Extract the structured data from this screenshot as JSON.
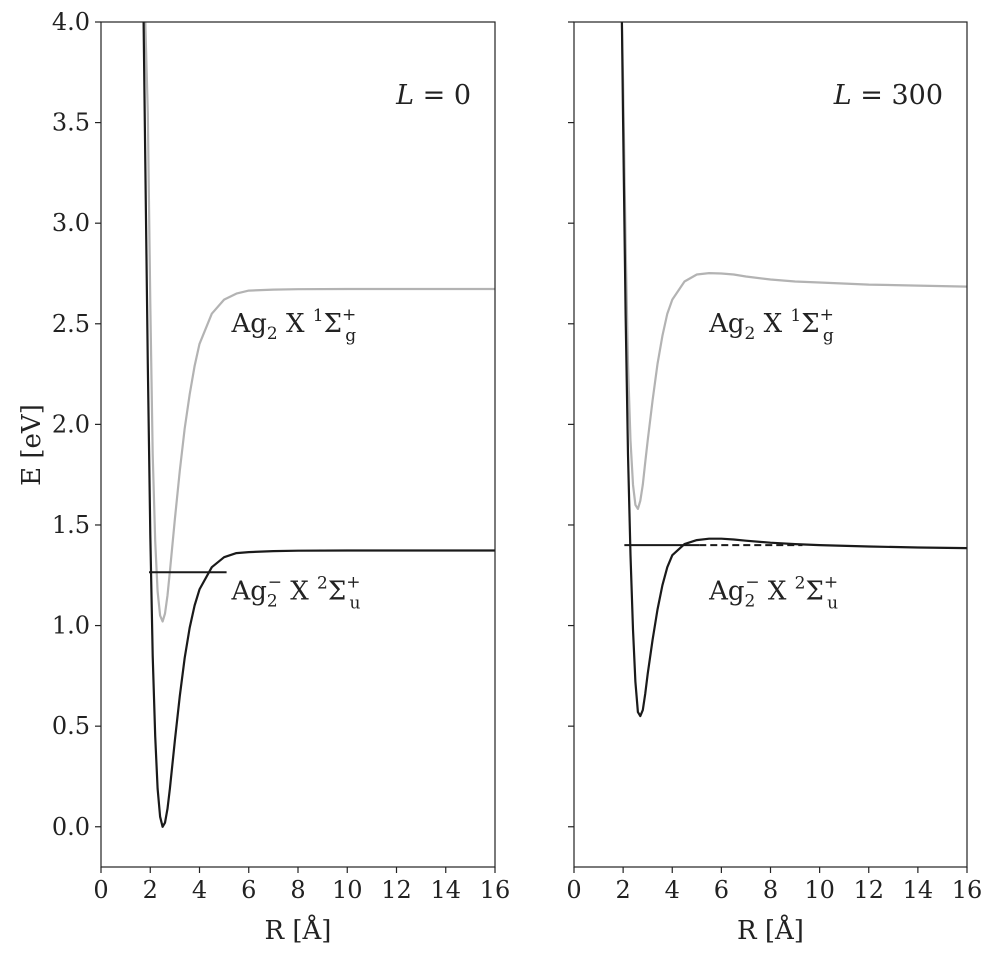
{
  "chart_data": [
    {
      "type": "line",
      "panel_label": {
        "prefix": "L",
        "value": "= 0"
      },
      "xlabel": "R [Å]",
      "ylabel": "E [eV]",
      "xlim": [
        0,
        16
      ],
      "ylim": [
        -0.2,
        4.0
      ],
      "xticks": [
        "0",
        "2",
        "4",
        "6",
        "8",
        "10",
        "12",
        "14",
        "16"
      ],
      "yticks": [
        "0.0",
        "0.5",
        "1.0",
        "1.5",
        "2.0",
        "2.5",
        "3.0",
        "3.5",
        "4.0"
      ],
      "series": [
        {
          "label_parts": [
            "Ag",
            "2",
            " X ",
            "1",
            "Σ",
            "+",
            "g"
          ],
          "color": "#b3b3b3",
          "x": [
            1.8,
            1.9,
            2.0,
            2.1,
            2.2,
            2.3,
            2.4,
            2.5,
            2.6,
            2.7,
            2.8,
            2.9,
            3.0,
            3.2,
            3.4,
            3.6,
            3.8,
            4.0,
            4.5,
            5.0,
            5.5,
            6.0,
            7.0,
            8.0,
            10.0,
            12.0,
            14.0,
            16.0
          ],
          "y": [
            4.0,
            3.55,
            2.6,
            1.85,
            1.42,
            1.17,
            1.05,
            1.02,
            1.06,
            1.15,
            1.27,
            1.4,
            1.53,
            1.77,
            1.98,
            2.15,
            2.29,
            2.4,
            2.55,
            2.62,
            2.65,
            2.665,
            2.67,
            2.672,
            2.673,
            2.673,
            2.673,
            2.673
          ]
        },
        {
          "label_parts": [
            "Ag",
            "2",
            "−",
            " X ",
            "2",
            "Σ",
            "+",
            "u"
          ],
          "color": "#1a1a1a",
          "x": [
            1.73,
            1.8,
            1.9,
            2.0,
            2.1,
            2.2,
            2.3,
            2.4,
            2.5,
            2.6,
            2.7,
            2.8,
            2.9,
            3.0,
            3.2,
            3.4,
            3.6,
            3.8,
            4.0,
            4.5,
            5.0,
            5.5,
            6.0,
            7.0,
            8.0,
            10.0,
            12.0,
            14.0,
            16.0
          ],
          "y": [
            4.0,
            3.3,
            2.3,
            1.45,
            0.85,
            0.45,
            0.19,
            0.05,
            0.0,
            0.02,
            0.09,
            0.19,
            0.31,
            0.43,
            0.65,
            0.84,
            0.99,
            1.1,
            1.18,
            1.29,
            1.34,
            1.36,
            1.365,
            1.37,
            1.372,
            1.373,
            1.373,
            1.373,
            1.373
          ]
        }
      ],
      "levels": [
        {
          "x": [
            1.95,
            5.1
          ],
          "y": 1.265,
          "style": "solid",
          "color": "#1a1a1a"
        }
      ],
      "annotations": [
        {
          "series_index": 0,
          "x": 5.3,
          "y": 2.46
        },
        {
          "series_index": 1,
          "x": 5.3,
          "y": 1.13
        }
      ]
    },
    {
      "type": "line",
      "panel_label": {
        "prefix": "L",
        "value": "= 300"
      },
      "xlabel": "R [Å]",
      "ylabel": "",
      "xlim": [
        0,
        16
      ],
      "ylim": [
        -0.2,
        4.0
      ],
      "xticks": [
        "0",
        "2",
        "4",
        "6",
        "8",
        "10",
        "12",
        "14",
        "16"
      ],
      "yticks": [],
      "series": [
        {
          "label_parts": [
            "Ag",
            "2",
            " X ",
            "1",
            "Σ",
            "+",
            "g"
          ],
          "color": "#b3b3b3",
          "x": [
            1.95,
            2.0,
            2.1,
            2.2,
            2.3,
            2.4,
            2.5,
            2.6,
            2.7,
            2.8,
            2.9,
            3.0,
            3.2,
            3.4,
            3.6,
            3.8,
            4.0,
            4.5,
            5.0,
            5.5,
            6.0,
            6.5,
            7.0,
            8.0,
            9.0,
            10.0,
            12.0,
            14.0,
            16.0
          ],
          "y": [
            4.0,
            3.7,
            2.9,
            2.3,
            1.92,
            1.7,
            1.6,
            1.58,
            1.62,
            1.7,
            1.81,
            1.92,
            2.12,
            2.3,
            2.44,
            2.55,
            2.62,
            2.71,
            2.745,
            2.752,
            2.75,
            2.745,
            2.735,
            2.72,
            2.71,
            2.705,
            2.695,
            2.69,
            2.685
          ]
        },
        {
          "label_parts": [
            "Ag",
            "2",
            "−",
            " X ",
            "2",
            "Σ",
            "+",
            "u"
          ],
          "color": "#1a1a1a",
          "x": [
            1.95,
            2.0,
            2.1,
            2.2,
            2.3,
            2.4,
            2.5,
            2.6,
            2.7,
            2.8,
            2.9,
            3.0,
            3.2,
            3.4,
            3.6,
            3.8,
            4.0,
            4.5,
            5.0,
            5.5,
            6.0,
            6.5,
            7.0,
            8.0,
            9.0,
            10.0,
            12.0,
            14.0,
            16.0
          ],
          "y": [
            4.0,
            3.5,
            2.55,
            1.85,
            1.35,
            0.98,
            0.72,
            0.57,
            0.55,
            0.58,
            0.66,
            0.76,
            0.93,
            1.08,
            1.2,
            1.29,
            1.35,
            1.405,
            1.425,
            1.432,
            1.432,
            1.428,
            1.422,
            1.412,
            1.405,
            1.4,
            1.393,
            1.388,
            1.385
          ]
        }
      ],
      "levels": [
        {
          "x": [
            2.05,
            5.1
          ],
          "y": 1.4,
          "style": "solid",
          "color": "#1a1a1a"
        },
        {
          "x": [
            5.1,
            9.3
          ],
          "y": 1.4,
          "style": "dashed",
          "color": "#1a1a1a"
        }
      ],
      "annotations": [
        {
          "series_index": 0,
          "x": 5.5,
          "y": 2.46
        },
        {
          "series_index": 1,
          "x": 5.5,
          "y": 1.13
        }
      ]
    }
  ]
}
